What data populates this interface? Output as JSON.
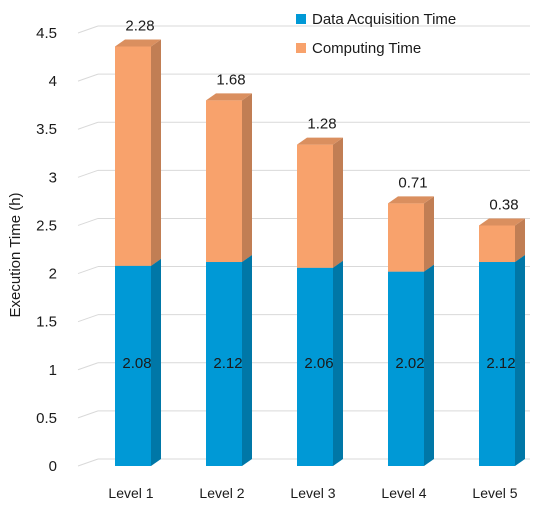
{
  "chart_data": {
    "type": "bar",
    "stacked": true,
    "three_d": true,
    "categories": [
      "Level 1",
      "Level 2",
      "Level 3",
      "Level 4",
      "Level 5"
    ],
    "series": [
      {
        "name": "Data Acquisition Time",
        "values": [
          2.08,
          2.12,
          2.06,
          2.02,
          2.12
        ],
        "color": "#0099d6"
      },
      {
        "name": "Computing Time",
        "values": [
          2.28,
          1.68,
          1.28,
          0.71,
          0.38
        ],
        "color": "#f8a26c"
      }
    ],
    "value_labels_bottom": [
      "2.08",
      "2.12",
      "2.06",
      "2.02",
      "2.12"
    ],
    "value_labels_top": [
      "2.28",
      "1.68",
      "1.28",
      "0.71",
      "0.38"
    ],
    "ylabel": "Execution Time (h)",
    "ylim": [
      0,
      4.5
    ],
    "yticks": [
      "0",
      "0.5",
      "1",
      "1.5",
      "2",
      "2.5",
      "3",
      "3.5",
      "4",
      "4.5"
    ],
    "grid": true,
    "legend_position": "top-right"
  }
}
